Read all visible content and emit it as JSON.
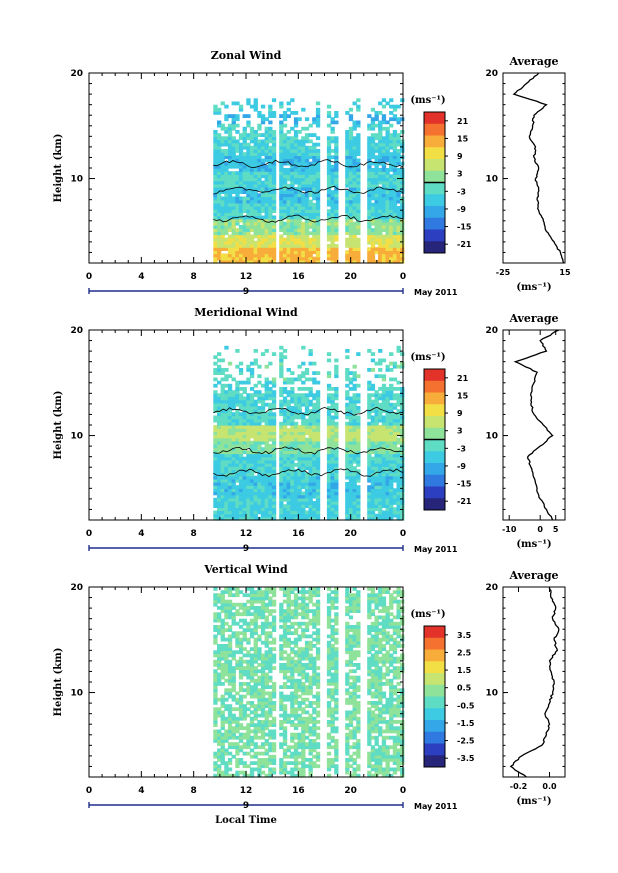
{
  "chart_data": [
    {
      "type": "heatmap",
      "title": "Zonal Wind",
      "ylabel": "Height (km)",
      "ylim": [
        2,
        20
      ],
      "yticks": [
        "10",
        "20"
      ],
      "xticks": [
        "0",
        "4",
        "8",
        "12",
        "16",
        "20",
        "0"
      ],
      "xlim": [
        0,
        24
      ],
      "date_marker": "9",
      "date_label": "May 2011",
      "colorbar": {
        "unit": "(ms⁻¹)",
        "ticks": [
          "21",
          "15",
          "9",
          "3",
          "-3",
          "-9",
          "-15",
          "-21"
        ],
        "range": [
          -24,
          24
        ],
        "zero_line": 0
      },
      "data_x_range": [
        9.5,
        24
      ],
      "data_height_range": [
        2,
        17.5
      ],
      "profile": {
        "title": "Average",
        "xlabel": "(ms⁻¹)",
        "xticks": [
          "-25",
          "15"
        ],
        "xlim": [
          -25,
          15
        ],
        "heights": [
          2,
          3,
          4,
          5,
          6,
          7,
          8,
          9,
          10,
          11,
          12,
          13,
          14,
          15,
          16,
          17,
          18,
          19,
          20
        ],
        "values": [
          14,
          12,
          8,
          3,
          1,
          -2,
          -3,
          -2,
          -4,
          -2,
          -5,
          -4,
          -8,
          -6,
          -5,
          3,
          -18,
          -10,
          -2
        ]
      }
    },
    {
      "type": "heatmap",
      "title": "Meridional Wind",
      "ylabel": "Height (km)",
      "ylim": [
        2,
        20
      ],
      "yticks": [
        "10",
        "20"
      ],
      "xticks": [
        "0",
        "4",
        "8",
        "12",
        "16",
        "20",
        "0"
      ],
      "xlim": [
        0,
        24
      ],
      "date_marker": "9",
      "date_label": "May 2011",
      "colorbar": {
        "unit": "(ms⁻¹)",
        "ticks": [
          "21",
          "15",
          "9",
          "3",
          "-3",
          "-9",
          "-15",
          "-21"
        ],
        "range": [
          -24,
          24
        ],
        "zero_line": 0
      },
      "data_x_range": [
        9.5,
        24
      ],
      "data_height_range": [
        2,
        18.5
      ],
      "profile": {
        "title": "Average",
        "xlabel": "(ms⁻¹)",
        "xticks": [
          "-10",
          "0",
          "5"
        ],
        "xlim": [
          -12,
          8
        ],
        "heights": [
          2,
          3,
          4,
          5,
          6,
          7,
          8,
          9,
          10,
          11,
          12,
          13,
          14,
          15,
          16,
          17,
          18,
          19,
          20
        ],
        "values": [
          4,
          2,
          0,
          -1,
          -2,
          -3,
          -4,
          0,
          4,
          1,
          -2,
          -3,
          -3,
          -2,
          -1,
          -8,
          2,
          0,
          6
        ]
      }
    },
    {
      "type": "heatmap",
      "title": "Vertical Wind",
      "ylabel": "Height (km)",
      "xlabel": "Local Time",
      "ylim": [
        2,
        20
      ],
      "yticks": [
        "10",
        "20"
      ],
      "xticks": [
        "0",
        "4",
        "8",
        "12",
        "16",
        "20",
        "0"
      ],
      "xlim": [
        0,
        24
      ],
      "date_marker": "9",
      "date_label": "May 2011",
      "colorbar": {
        "unit": "(ms⁻¹)",
        "ticks": [
          "3.5",
          "2.5",
          "1.5",
          "0.5",
          "-0.5",
          "-1.5",
          "-2.5",
          "-3.5"
        ],
        "range": [
          -4,
          4
        ]
      },
      "data_x_range": [
        9.5,
        24
      ],
      "data_height_range": [
        2,
        20
      ],
      "profile": {
        "title": "Average",
        "xlabel": "(ms⁻¹)",
        "xticks": [
          "-0.2",
          "0.0"
        ],
        "xlim": [
          -0.3,
          0.1
        ],
        "heights": [
          2,
          3,
          4,
          5,
          6,
          7,
          8,
          9,
          10,
          11,
          12,
          13,
          14,
          15,
          16,
          17,
          18,
          19,
          20
        ],
        "values": [
          -0.15,
          -0.25,
          -0.18,
          -0.05,
          -0.02,
          0.0,
          -0.03,
          0.0,
          0.02,
          0.03,
          0.01,
          0.0,
          0.05,
          0.03,
          0.06,
          0.02,
          0.04,
          0.01,
          0.0
        ]
      }
    }
  ],
  "colors": {
    "scale": [
      "#26257a",
      "#2b3fc0",
      "#2f79e0",
      "#33a7e8",
      "#3ccbe2",
      "#5fdcc4",
      "#8fe29a",
      "#c8e470",
      "#f2de45",
      "#f8ad3a",
      "#f4712f",
      "#e2322a"
    ],
    "axis": "#000000"
  }
}
